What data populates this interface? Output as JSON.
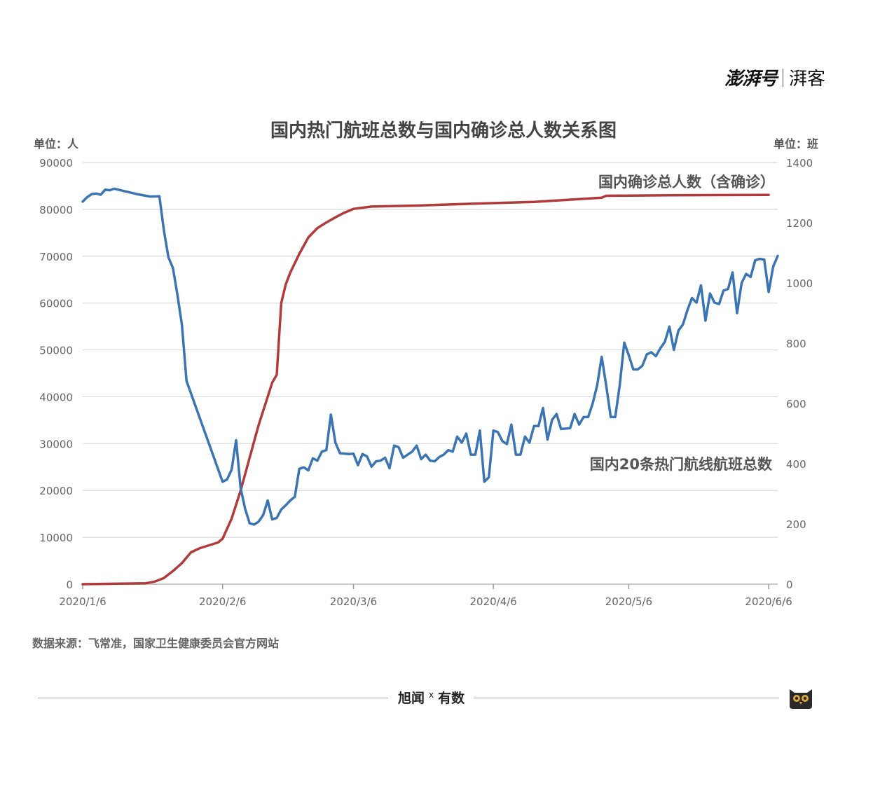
{
  "brand": {
    "left": "澎湃号",
    "right": "湃客"
  },
  "footer": {
    "left": "旭闻",
    "x": "x",
    "right": "有数"
  },
  "source_text": "数据来源：飞常准，国家卫生健康委员会官方网站",
  "colors": {
    "confirmed": "#b23a3a",
    "flights": "#3a74b3",
    "grid": "#d9d9d9"
  },
  "icons": {
    "owl": "owl-icon"
  },
  "chart_data": {
    "type": "line",
    "title": "国内热门航班总数与国内确诊总人数关系图",
    "y_left_unit": "单位：人",
    "y_right_unit": "单位：班",
    "y_left_range": [
      0,
      90000
    ],
    "y_right_range": [
      0,
      1400
    ],
    "y_left_ticks": [
      "0",
      "10000",
      "20000",
      "30000",
      "40000",
      "50000",
      "60000",
      "70000",
      "80000",
      "90000"
    ],
    "y_right_ticks": [
      "0",
      "200",
      "400",
      "600",
      "800",
      "1000",
      "1200",
      "1400"
    ],
    "x_ticks": [
      "2020/1/6",
      "2020/2/6",
      "2020/3/6",
      "2020/4/6",
      "2020/5/6",
      "2020/6/6"
    ],
    "grid": true,
    "series": [
      {
        "name": "国内确诊总人数（含确诊）",
        "axis": "left",
        "points": [
          [
            "2020-01-06",
            0
          ],
          [
            "2020-01-20",
            200
          ],
          [
            "2020-01-22",
            550
          ],
          [
            "2020-01-24",
            1300
          ],
          [
            "2020-01-26",
            2800
          ],
          [
            "2020-01-28",
            4500
          ],
          [
            "2020-01-30",
            6800
          ],
          [
            "2020-02-01",
            7700
          ],
          [
            "2020-02-03",
            8300
          ],
          [
            "2020-02-05",
            8900
          ],
          [
            "2020-02-06",
            9700
          ],
          [
            "2020-02-08",
            14000
          ],
          [
            "2020-02-10",
            20000
          ],
          [
            "2020-02-12",
            27000
          ],
          [
            "2020-02-14",
            34000
          ],
          [
            "2020-02-16",
            40000
          ],
          [
            "2020-02-17",
            43000
          ],
          [
            "2020-02-18",
            44700
          ],
          [
            "2020-02-19",
            60000
          ],
          [
            "2020-02-20",
            64000
          ],
          [
            "2020-02-21",
            66500
          ],
          [
            "2020-02-23",
            70500
          ],
          [
            "2020-02-25",
            74000
          ],
          [
            "2020-02-27",
            76000
          ],
          [
            "2020-02-29",
            77200
          ],
          [
            "2020-03-02",
            78300
          ],
          [
            "2020-03-04",
            79300
          ],
          [
            "2020-03-06",
            80100
          ],
          [
            "2020-03-10",
            80600
          ],
          [
            "2020-03-20",
            80800
          ],
          [
            "2020-04-01",
            81200
          ],
          [
            "2020-04-15",
            81600
          ],
          [
            "2020-04-30",
            82500
          ],
          [
            "2020-05-01",
            82900
          ],
          [
            "2020-05-15",
            83000
          ],
          [
            "2020-06-06",
            83100
          ]
        ]
      },
      {
        "name": "国内20条热门航线航班总数",
        "axis": "right",
        "points": [
          [
            "2020-01-06",
            1270
          ],
          [
            "2020-01-07",
            1285
          ],
          [
            "2020-01-08",
            1295
          ],
          [
            "2020-01-09",
            1297
          ],
          [
            "2020-01-10",
            1293
          ],
          [
            "2020-01-11",
            1310
          ],
          [
            "2020-01-12",
            1308
          ],
          [
            "2020-01-13",
            1313
          ],
          [
            "2020-01-18",
            1295
          ],
          [
            "2020-01-21",
            1287
          ],
          [
            "2020-01-23",
            1288
          ],
          [
            "2020-01-24",
            1175
          ],
          [
            "2020-01-25",
            1085
          ],
          [
            "2020-01-26",
            1050
          ],
          [
            "2020-01-27",
            960
          ],
          [
            "2020-01-28",
            860
          ],
          [
            "2020-01-29",
            675
          ],
          [
            "2020-02-06",
            340
          ],
          [
            "2020-02-07",
            348
          ],
          [
            "2020-02-08",
            380
          ],
          [
            "2020-02-09",
            478
          ],
          [
            "2020-02-10",
            318
          ],
          [
            "2020-02-11",
            250
          ],
          [
            "2020-02-12",
            202
          ],
          [
            "2020-02-13",
            198
          ],
          [
            "2020-02-14",
            208
          ],
          [
            "2020-02-15",
            230
          ],
          [
            "2020-02-16",
            278
          ],
          [
            "2020-02-17",
            215
          ],
          [
            "2020-02-18",
            220
          ],
          [
            "2020-02-19",
            248
          ],
          [
            "2020-02-20",
            262
          ],
          [
            "2020-02-21",
            278
          ],
          [
            "2020-02-22",
            290
          ],
          [
            "2020-02-23",
            383
          ],
          [
            "2020-02-24",
            388
          ],
          [
            "2020-02-25",
            378
          ],
          [
            "2020-02-26",
            418
          ],
          [
            "2020-02-27",
            410
          ],
          [
            "2020-02-28",
            440
          ],
          [
            "2020-02-29",
            445
          ],
          [
            "2020-03-01",
            563
          ],
          [
            "2020-03-02",
            470
          ],
          [
            "2020-03-03",
            435
          ],
          [
            "2020-03-05",
            432
          ],
          [
            "2020-03-06",
            433
          ],
          [
            "2020-03-07",
            395
          ],
          [
            "2020-03-08",
            432
          ],
          [
            "2020-03-09",
            424
          ],
          [
            "2020-03-10",
            390
          ],
          [
            "2020-03-11",
            408
          ],
          [
            "2020-03-12",
            410
          ],
          [
            "2020-03-13",
            420
          ],
          [
            "2020-03-14",
            385
          ],
          [
            "2020-03-15",
            460
          ],
          [
            "2020-03-16",
            455
          ],
          [
            "2020-03-17",
            420
          ],
          [
            "2020-03-19",
            440
          ],
          [
            "2020-03-20",
            460
          ],
          [
            "2020-03-21",
            415
          ],
          [
            "2020-03-22",
            430
          ],
          [
            "2020-03-23",
            410
          ],
          [
            "2020-03-24",
            408
          ],
          [
            "2020-03-25",
            422
          ],
          [
            "2020-03-26",
            430
          ],
          [
            "2020-03-27",
            445
          ],
          [
            "2020-03-28",
            440
          ],
          [
            "2020-03-29",
            490
          ],
          [
            "2020-03-30",
            470
          ],
          [
            "2020-03-31",
            500
          ],
          [
            "2020-04-01",
            430
          ],
          [
            "2020-04-02",
            430
          ],
          [
            "2020-04-03",
            510
          ],
          [
            "2020-04-04",
            340
          ],
          [
            "2020-04-05",
            355
          ],
          [
            "2020-04-06",
            510
          ],
          [
            "2020-04-07",
            505
          ],
          [
            "2020-04-08",
            475
          ],
          [
            "2020-04-09",
            465
          ],
          [
            "2020-04-10",
            530
          ],
          [
            "2020-04-11",
            430
          ],
          [
            "2020-04-12",
            430
          ],
          [
            "2020-04-13",
            490
          ],
          [
            "2020-04-14",
            470
          ],
          [
            "2020-04-15",
            525
          ],
          [
            "2020-04-16",
            525
          ],
          [
            "2020-04-17",
            585
          ],
          [
            "2020-04-18",
            480
          ],
          [
            "2020-04-19",
            545
          ],
          [
            "2020-04-20",
            565
          ],
          [
            "2020-04-21",
            515
          ],
          [
            "2020-04-23",
            518
          ],
          [
            "2020-04-24",
            565
          ],
          [
            "2020-04-25",
            530
          ],
          [
            "2020-04-26",
            555
          ],
          [
            "2020-04-27",
            555
          ],
          [
            "2020-04-28",
            600
          ],
          [
            "2020-04-29",
            660
          ],
          [
            "2020-04-30",
            755
          ],
          [
            "2020-05-01",
            660
          ],
          [
            "2020-05-02",
            555
          ],
          [
            "2020-05-03",
            555
          ],
          [
            "2020-05-04",
            660
          ],
          [
            "2020-05-05",
            802
          ],
          [
            "2020-05-06",
            760
          ],
          [
            "2020-05-07",
            713
          ],
          [
            "2020-05-08",
            713
          ],
          [
            "2020-05-09",
            725
          ],
          [
            "2020-05-10",
            763
          ],
          [
            "2020-05-11",
            770
          ],
          [
            "2020-05-12",
            757
          ],
          [
            "2020-05-13",
            783
          ],
          [
            "2020-05-14",
            805
          ],
          [
            "2020-05-15",
            855
          ],
          [
            "2020-05-16",
            778
          ],
          [
            "2020-05-17",
            842
          ],
          [
            "2020-05-18",
            862
          ],
          [
            "2020-05-19",
            910
          ],
          [
            "2020-05-20",
            950
          ],
          [
            "2020-05-21",
            935
          ],
          [
            "2020-05-22",
            992
          ],
          [
            "2020-05-23",
            875
          ],
          [
            "2020-05-24",
            965
          ],
          [
            "2020-05-25",
            935
          ],
          [
            "2020-05-26",
            930
          ],
          [
            "2020-05-27",
            975
          ],
          [
            "2020-05-28",
            980
          ],
          [
            "2020-05-29",
            1035
          ],
          [
            "2020-05-30",
            900
          ],
          [
            "2020-05-31",
            1000
          ],
          [
            "2020-06-01",
            1030
          ],
          [
            "2020-06-02",
            1020
          ],
          [
            "2020-06-03",
            1075
          ],
          [
            "2020-06-04",
            1080
          ],
          [
            "2020-06-05",
            1078
          ],
          [
            "2020-06-06",
            970
          ],
          [
            "2020-06-07",
            1055
          ],
          [
            "2020-06-08",
            1090
          ]
        ]
      }
    ]
  }
}
